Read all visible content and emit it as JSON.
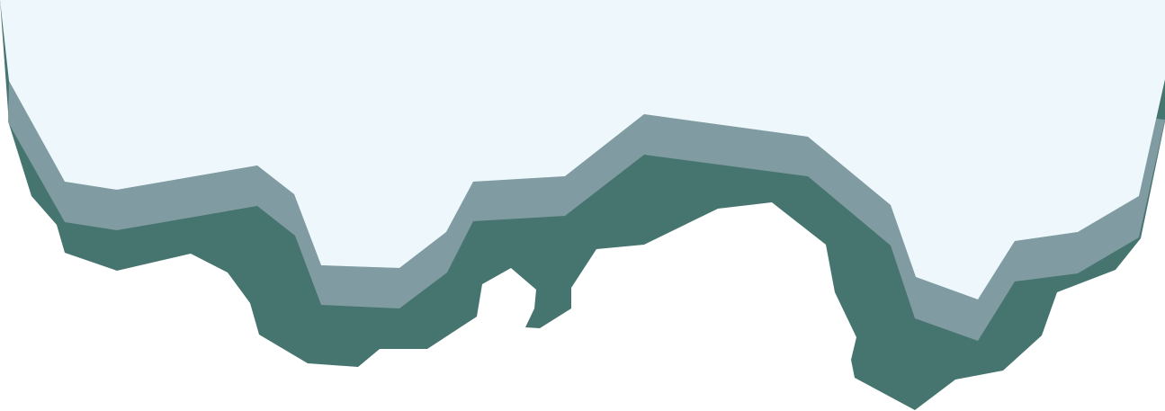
{
  "colors": {
    "background": "#ffffff",
    "snow_top": "#eef7fb",
    "snow_edge": "#809ca2",
    "ground_dark": "#46746f"
  }
}
